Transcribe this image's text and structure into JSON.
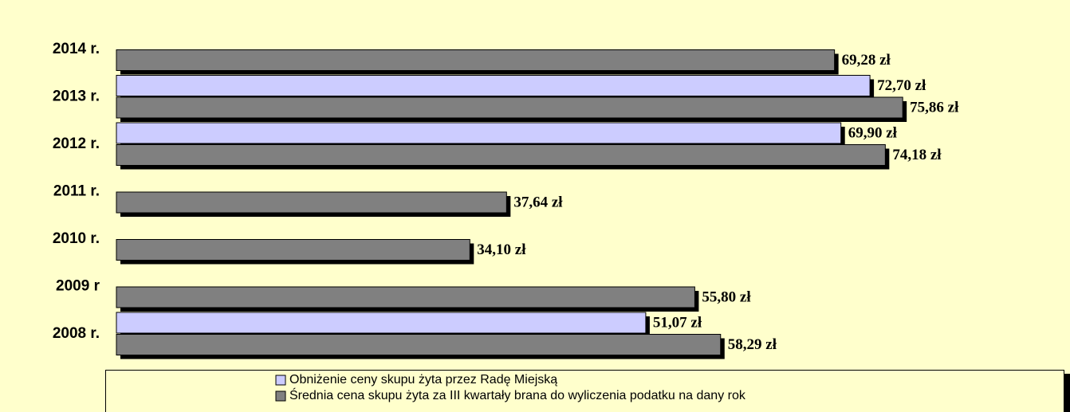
{
  "chart_data": {
    "type": "barh",
    "categories": [
      "2014 r.",
      "2013 r.",
      "2012 r.",
      "2011 r.",
      "2010 r.",
      "2009 r",
      "2008 r."
    ],
    "series": [
      {
        "name": "Obniżenie ceny skupu żyta przez Radę Miejską",
        "color": "#ccccff",
        "values": [
          null,
          72.7,
          69.9,
          null,
          null,
          null,
          51.07
        ],
        "value_labels": [
          null,
          "72,70 zł",
          "69,90 zł",
          null,
          null,
          null,
          "51,07 zł"
        ]
      },
      {
        "name": "Średnia cena skupu żyta za III kwartały brana do wyliczenia podatku na dany rok",
        "color": "#808080",
        "values": [
          69.28,
          75.86,
          74.18,
          37.64,
          34.1,
          55.8,
          58.29
        ],
        "value_labels": [
          "69,28 zł",
          "75,86 zł",
          "74,18 zł",
          "37,64 zł",
          "34,10 zł",
          "55,80 zł",
          "58,29 zł"
        ]
      }
    ]
  }
}
